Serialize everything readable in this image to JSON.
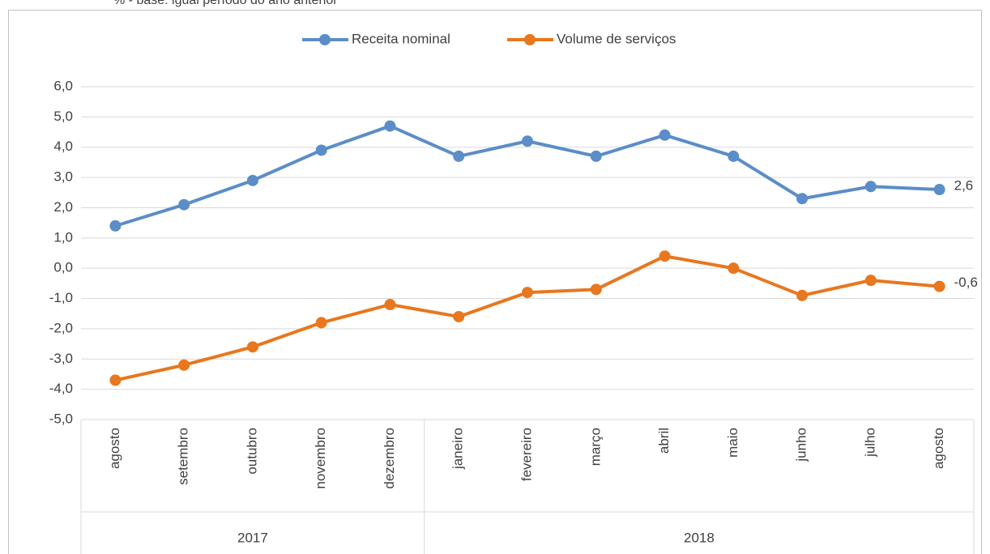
{
  "chart_data": {
    "type": "line",
    "subtitle": "% - base: igual período do ano anterior",
    "categories": [
      "agosto",
      "setembro",
      "outubro",
      "novembro",
      "dezembro",
      "janeiro",
      "fevereiro",
      "março",
      "abril",
      "maio",
      "junho",
      "julho",
      "agosto"
    ],
    "groups": [
      {
        "label": "2017",
        "span": 5
      },
      {
        "label": "2018",
        "span": 8
      }
    ],
    "series": [
      {
        "name": "Receita nominal",
        "color": "#5b8dc8",
        "values": [
          1.4,
          2.1,
          2.9,
          3.9,
          4.7,
          3.7,
          4.2,
          3.7,
          4.4,
          3.7,
          2.3,
          2.7,
          2.6
        ],
        "value_labels": [
          null,
          null,
          null,
          null,
          null,
          null,
          null,
          null,
          null,
          null,
          null,
          null,
          "2,6"
        ]
      },
      {
        "name": "Volume de serviços",
        "color": "#e8771e",
        "values": [
          -3.7,
          -3.2,
          -2.6,
          -1.8,
          -1.2,
          -1.6,
          -0.8,
          -0.7,
          0.4,
          0.0,
          -0.9,
          -0.4,
          -0.6
        ],
        "value_labels": [
          null,
          null,
          null,
          null,
          null,
          null,
          null,
          null,
          null,
          null,
          null,
          null,
          "-0,6"
        ]
      }
    ],
    "ylim": [
      -5,
      6
    ],
    "yticks": [
      {
        "value": -5,
        "label": "-5,0"
      },
      {
        "value": -4,
        "label": "-4,0"
      },
      {
        "value": -3,
        "label": "-3,0"
      },
      {
        "value": -2,
        "label": "-2,0"
      },
      {
        "value": -1,
        "label": "-1,0"
      },
      {
        "value": 0,
        "label": "0,0"
      },
      {
        "value": 1,
        "label": "1,0"
      },
      {
        "value": 2,
        "label": "2,0"
      },
      {
        "value": 3,
        "label": "3,0"
      },
      {
        "value": 4,
        "label": "4,0"
      },
      {
        "value": 5,
        "label": "5,0"
      },
      {
        "value": 6,
        "label": "6,0"
      }
    ],
    "grid": true,
    "legend": "top"
  }
}
